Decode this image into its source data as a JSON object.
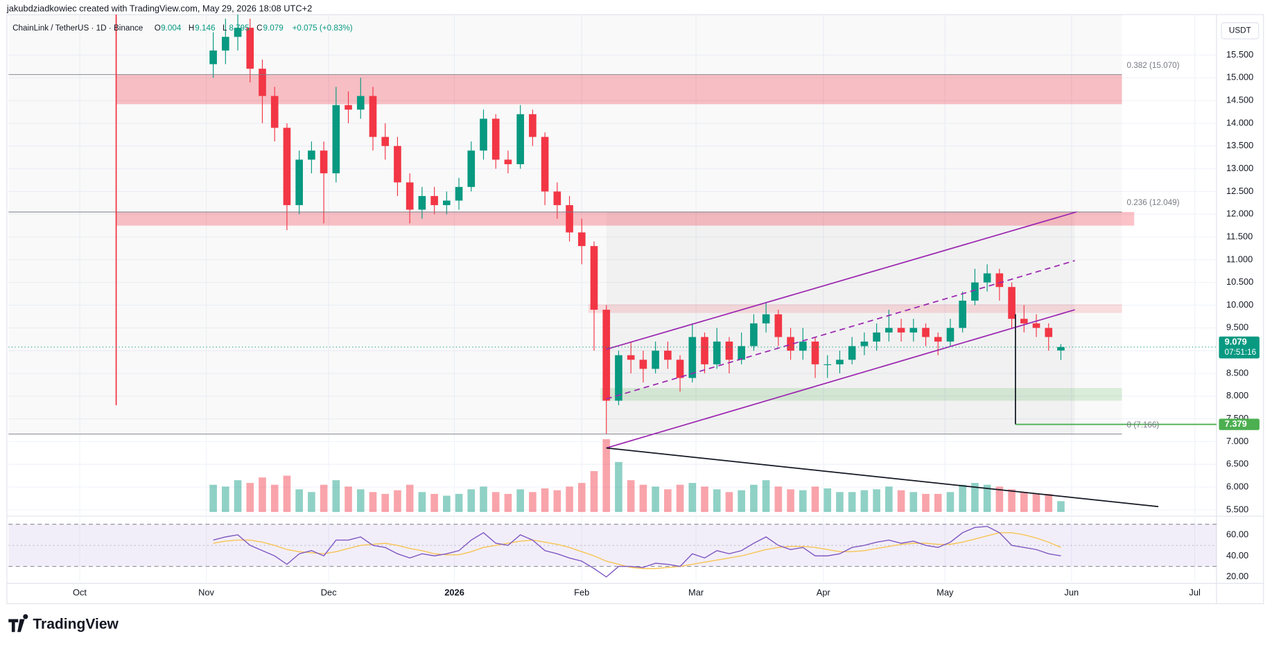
{
  "header": {
    "credit": "jakubdziadkowiec created with TradingView.com, May 29, 2026 18:08 UTC+2",
    "symbol": "ChainLink / TetherUS · 1D · Binance",
    "ohlc_letters": [
      "O",
      "H",
      "L",
      "C"
    ],
    "change": "+0.075 (+0.83%)",
    "currency": "USDT",
    "countdown": "07:51:16",
    "brand": "TradingView"
  },
  "chart_data": {
    "type": "candlestick",
    "x": [
      50,
      53,
      56,
      59,
      62,
      65,
      68,
      71,
      74,
      77,
      80,
      83,
      86,
      89,
      92,
      95,
      98,
      101,
      104,
      107,
      110,
      113,
      116,
      119,
      122,
      125,
      128,
      131,
      134,
      137,
      140,
      143,
      146,
      149,
      152,
      155,
      158,
      161,
      164,
      167,
      170,
      173,
      176,
      179,
      182,
      185,
      188,
      191,
      194,
      197,
      200,
      203,
      206,
      209,
      212,
      215,
      218,
      221,
      224,
      227,
      230,
      233,
      236,
      239,
      242,
      245,
      248,
      251,
      254,
      257
    ],
    "open": [
      15.3,
      15.6,
      15.9,
      16.1,
      15.2,
      14.6,
      13.9,
      12.2,
      13.2,
      13.4,
      12.9,
      14.4,
      14.3,
      14.6,
      13.7,
      13.5,
      12.7,
      12.1,
      12.4,
      12.2,
      12.3,
      12.6,
      13.4,
      14.1,
      13.2,
      13.1,
      14.2,
      13.7,
      12.5,
      12.2,
      11.6,
      11.3,
      9.9,
      7.9,
      8.9,
      8.8,
      8.6,
      9.0,
      8.8,
      8.4,
      9.3,
      8.7,
      9.2,
      8.8,
      9.1,
      9.6,
      9.8,
      9.3,
      9.0,
      9.2,
      8.7,
      8.7,
      8.8,
      9.1,
      9.2,
      9.4,
      9.5,
      9.4,
      9.5,
      9.3,
      9.2,
      9.5,
      10.1,
      10.5,
      10.7,
      10.4,
      9.7,
      9.6,
      9.5,
      9.004
    ],
    "high": [
      16.0,
      16.3,
      16.5,
      16.3,
      15.4,
      14.8,
      14.0,
      13.4,
      13.6,
      13.6,
      14.8,
      14.7,
      15.0,
      14.8,
      14.0,
      13.7,
      12.9,
      12.6,
      12.6,
      12.5,
      12.8,
      13.6,
      14.3,
      14.2,
      13.4,
      14.4,
      14.3,
      13.8,
      12.7,
      12.4,
      11.9,
      11.4,
      10.0,
      9.0,
      9.2,
      9.0,
      9.2,
      9.2,
      8.9,
      9.6,
      9.4,
      9.5,
      9.3,
      9.4,
      9.8,
      10.07,
      9.9,
      9.5,
      9.5,
      9.3,
      8.9,
      9.0,
      9.3,
      9.4,
      9.6,
      9.9,
      9.7,
      9.7,
      9.6,
      9.4,
      9.7,
      10.3,
      10.8,
      10.9,
      10.8,
      10.5,
      10.0,
      9.8,
      9.6,
      9.146
    ],
    "low": [
      15.0,
      15.3,
      15.6,
      14.9,
      14.0,
      13.6,
      11.65,
      12.0,
      12.9,
      11.8,
      12.7,
      14.0,
      14.1,
      13.4,
      13.2,
      12.4,
      11.8,
      11.9,
      12.0,
      12.0,
      12.1,
      12.5,
      13.2,
      13.0,
      12.9,
      13.0,
      13.5,
      12.2,
      11.9,
      11.4,
      10.9,
      9.0,
      7.17,
      7.8,
      8.5,
      8.3,
      8.5,
      8.6,
      8.1,
      8.3,
      8.5,
      8.6,
      8.5,
      8.7,
      9.0,
      9.4,
      9.1,
      8.8,
      8.8,
      8.4,
      8.4,
      8.5,
      8.7,
      8.9,
      9.0,
      9.2,
      9.2,
      9.2,
      9.1,
      8.9,
      9.1,
      9.4,
      10.0,
      10.3,
      10.1,
      9.5,
      9.4,
      9.3,
      9.0,
      8.795
    ],
    "close": [
      15.6,
      15.9,
      16.1,
      15.2,
      14.6,
      13.9,
      12.2,
      13.2,
      13.4,
      12.9,
      14.4,
      14.3,
      14.6,
      13.7,
      13.5,
      12.7,
      12.1,
      12.4,
      12.2,
      12.3,
      12.6,
      13.4,
      14.1,
      13.2,
      13.1,
      14.2,
      13.7,
      12.5,
      12.2,
      11.6,
      11.3,
      9.9,
      7.9,
      8.9,
      8.8,
      8.6,
      9.0,
      8.8,
      8.4,
      9.3,
      8.7,
      9.2,
      8.8,
      9.1,
      9.6,
      9.8,
      9.3,
      9.0,
      9.2,
      8.7,
      8.7,
      8.8,
      9.1,
      9.2,
      9.4,
      9.5,
      9.4,
      9.5,
      9.3,
      9.2,
      9.5,
      10.1,
      10.5,
      10.7,
      10.4,
      9.7,
      9.6,
      9.5,
      9.3,
      9.079
    ],
    "volume": [
      30,
      28,
      35,
      32,
      38,
      30,
      40,
      25,
      22,
      30,
      35,
      28,
      25,
      22,
      20,
      24,
      30,
      22,
      20,
      18,
      20,
      25,
      28,
      22,
      20,
      25,
      22,
      26,
      24,
      28,
      32,
      45,
      80,
      55,
      35,
      30,
      28,
      25,
      30,
      32,
      28,
      25,
      22,
      24,
      30,
      35,
      28,
      25,
      24,
      28,
      26,
      22,
      22,
      24,
      25,
      28,
      24,
      22,
      20,
      20,
      22,
      30,
      32,
      30,
      28,
      25,
      22,
      20,
      20,
      12
    ],
    "up_color": "#089981",
    "down_color": "#f23645",
    "xlim": [
      0,
      295
    ],
    "xticks": [
      {
        "value": 17.4,
        "label": "Oct"
      },
      {
        "value": 48.3,
        "label": "Nov"
      },
      {
        "value": 78.2,
        "label": "Dec"
      },
      {
        "value": 108.9,
        "label": "2026"
      },
      {
        "value": 140,
        "label": "Feb"
      },
      {
        "value": 167.9,
        "label": "Mar"
      },
      {
        "value": 199,
        "label": "Apr"
      },
      {
        "value": 228.7,
        "label": "May"
      },
      {
        "value": 259.6,
        "label": "Jun"
      },
      {
        "value": 289.7,
        "label": "Jul"
      }
    ],
    "ylim": [
      5.45,
      16.39
    ],
    "yticks": [
      {
        "value": 5.5,
        "label": "5.500"
      },
      {
        "value": 6.0,
        "label": "6.000"
      },
      {
        "value": 6.5,
        "label": "6.500"
      },
      {
        "value": 7.0,
        "label": "7.000"
      },
      {
        "value": 7.5,
        "label": "7.500"
      },
      {
        "value": 8.0,
        "label": "8.000"
      },
      {
        "value": 8.5,
        "label": "8.500"
      },
      {
        "value": 9.0,
        "label": "9.000"
      },
      {
        "value": 9.5,
        "label": "9.500"
      },
      {
        "value": 10.0,
        "label": "10.000"
      },
      {
        "value": 10.5,
        "label": "10.500"
      },
      {
        "value": 11.0,
        "label": "11.000"
      },
      {
        "value": 11.5,
        "label": "11.500"
      },
      {
        "value": 12.0,
        "label": "12.000"
      },
      {
        "value": 12.5,
        "label": "12.500"
      },
      {
        "value": 13.0,
        "label": "13.000"
      },
      {
        "value": 13.5,
        "label": "13.500"
      },
      {
        "value": 14.0,
        "label": "14.000"
      },
      {
        "value": 14.5,
        "label": "14.500"
      },
      {
        "value": 15.0,
        "label": "15.000"
      },
      {
        "value": 15.5,
        "label": "15.500"
      }
    ],
    "grid": true,
    "rsi": {
      "values": [
        55,
        58,
        60,
        50,
        45,
        40,
        32,
        42,
        45,
        40,
        55,
        55,
        58,
        50,
        48,
        42,
        38,
        42,
        40,
        42,
        45,
        55,
        62,
        52,
        50,
        60,
        55,
        45,
        42,
        38,
        35,
        28,
        20,
        30,
        30,
        29,
        33,
        32,
        30,
        42,
        38,
        45,
        42,
        45,
        52,
        58,
        50,
        46,
        48,
        40,
        40,
        42,
        48,
        50,
        53,
        55,
        52,
        54,
        50,
        48,
        53,
        62,
        67,
        68,
        62,
        50,
        48,
        46,
        42,
        40
      ],
      "ma": [
        52,
        54,
        55,
        55,
        53,
        50,
        46,
        44,
        43,
        42,
        44,
        47,
        50,
        51,
        52,
        50,
        47,
        45,
        42,
        41,
        41,
        44,
        48,
        50,
        52,
        54,
        55,
        53,
        51,
        48,
        44,
        40,
        35,
        32,
        29,
        28,
        28,
        29,
        30,
        32,
        34,
        36,
        38,
        40,
        43,
        46,
        48,
        49,
        49,
        48,
        46,
        44,
        44,
        45,
        47,
        49,
        51,
        52,
        52,
        51,
        51,
        53,
        56,
        59,
        62,
        62,
        60,
        57,
        53,
        48
      ],
      "color": "#7e57c2",
      "ma_color": "#f7c453",
      "ylim": [
        15.4,
        75.4
      ],
      "yticks": [
        {
          "value": 20,
          "label": "20.00"
        },
        {
          "value": 40,
          "label": "40.00"
        },
        {
          "value": 60,
          "label": "60.00"
        }
      ],
      "bands": [
        30,
        70
      ],
      "mid": 50
    },
    "zones": [
      {
        "x": [
          0,
          271.9
        ],
        "y": [
          7.166,
          16.39
        ],
        "color": "rgba(0,0,0,0.025)"
      },
      {
        "x": [
          146,
          260.4
        ],
        "y": [
          7.166,
          12.05
        ],
        "color": "rgba(0,0,0,0.03)"
      },
      {
        "x": [
          26.3,
          271.9
        ],
        "y": [
          14.42,
          15.07
        ],
        "color": "rgba(242,54,69,0.3)"
      },
      {
        "x": [
          26.3,
          274.9
        ],
        "y": [
          11.75,
          12.05
        ],
        "color": "rgba(242,54,69,0.3)"
      },
      {
        "x": [
          141.6,
          271.9
        ],
        "y": [
          9.83,
          10.02
        ],
        "color": "rgba(242,54,69,0.15)"
      },
      {
        "x": [
          144.6,
          271.9
        ],
        "y": [
          7.9,
          8.18
        ],
        "color": "rgba(76,175,80,0.18)"
      }
    ],
    "fib": {
      "x": [
        0,
        271.9
      ],
      "color": "#787b86",
      "levels": [
        {
          "value": 15.07,
          "label": "0.382 (15.070)"
        },
        {
          "value": 12.049,
          "label": "0.236 (12.049)"
        },
        {
          "value": 7.166,
          "label": "0 (7.166)"
        }
      ]
    },
    "lines": [
      {
        "x": [
          146,
          260.8
        ],
        "y": [
          9.03,
          12.05
        ],
        "color": "#9c27b0",
        "dash": false
      },
      {
        "x": [
          146,
          260.4
        ],
        "y": [
          6.86,
          9.9
        ],
        "color": "#9c27b0",
        "dash": false
      },
      {
        "x": [
          146,
          260.4
        ],
        "y": [
          7.94,
          10.98
        ],
        "color": "#9c27b0",
        "dash": true
      },
      {
        "x": [
          146,
          280.8
        ],
        "y": [
          6.86,
          5.57
        ],
        "color": "#131722",
        "dash": false
      },
      {
        "x": [
          245.9,
          245.9
        ],
        "y": [
          9.8,
          7.379
        ],
        "color": "#131722",
        "dash": false
      },
      {
        "x": [
          245.9,
          295
        ],
        "y": [
          7.379,
          7.379
        ],
        "color": "#4caf50",
        "dash": false
      },
      {
        "x": [
          26.3,
          26.3
        ],
        "y": [
          16.39,
          7.8
        ],
        "color": "#f23645",
        "dash": false
      }
    ]
  }
}
